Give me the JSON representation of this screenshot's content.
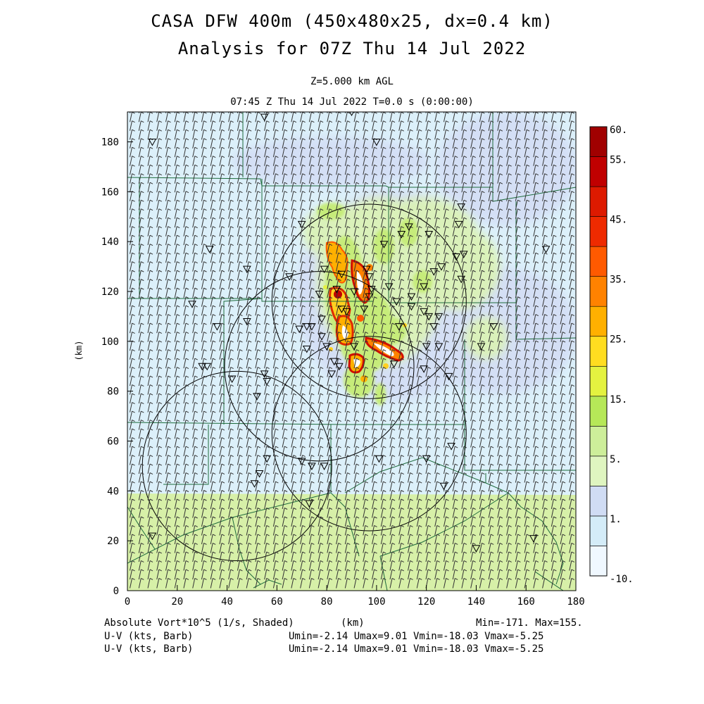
{
  "title": {
    "line1": "CASA DFW 400m (450x480x25, dx=0.4 km)",
    "line2": "Analysis for 07Z Thu 14 Jul 2022"
  },
  "subtitle": {
    "level": "Z=5.000 km AGL",
    "time": "07:45 Z Thu 14 Jul 2022    T=0.0 s (0:00:00)"
  },
  "axes": {
    "xlabel": "(km)",
    "ylabel": "(km)",
    "xticks": [
      0,
      20,
      40,
      60,
      80,
      100,
      120,
      140,
      160,
      180
    ],
    "yticks": [
      0,
      20,
      40,
      60,
      80,
      100,
      120,
      140,
      160,
      180
    ],
    "xlim": [
      0,
      180
    ],
    "ylim": [
      0,
      192
    ]
  },
  "colorbar": {
    "labels": [
      "60.",
      "55.",
      "45.",
      "35.",
      "25.",
      "15.",
      "5.",
      "1.",
      "-10."
    ],
    "colors": [
      "#f0f8ff",
      "#d4ecf8",
      "#d0dcf4",
      "#dff5c0",
      "#cdee9a",
      "#b6e858",
      "#e4f240",
      "#ffdd20",
      "#ffb000",
      "#ff8200",
      "#ff5a00",
      "#ee2a00",
      "#dd1a00",
      "#c00000",
      "#a00000"
    ]
  },
  "footer": {
    "field1": "Absolute Vort*10^5 (1/s, Shaded)",
    "xunits": "(km)",
    "minmax": "Min=-171. Max=155.",
    "field2": "U-V (kts, Barb)",
    "uv2": "Umin=-2.14 Umax=9.01 Vmin=-18.03 Vmax=-5.25",
    "field3": "U-V (kts, Barb)",
    "uv3": "Umin=-2.14 Umax=9.01 Vmin=-18.03 Vmax=-5.25"
  },
  "chart_data": {
    "type": "heatmap",
    "field": "Absolute Vorticity x10^5 (1/s)",
    "min": -171,
    "max": 155,
    "range_rings_km": [
      {
        "center": [
          97,
          116
        ],
        "radius": 39
      },
      {
        "center": [
          77,
          90
        ],
        "radius": 38
      },
      {
        "center": [
          97,
          63
        ],
        "radius": 39
      },
      {
        "center": [
          44,
          50
        ],
        "radius": 38
      }
    ],
    "stations_km": [
      [
        10,
        180
      ],
      [
        90,
        192
      ],
      [
        55,
        190
      ],
      [
        100,
        180
      ],
      [
        33,
        137
      ],
      [
        48,
        129
      ],
      [
        70,
        147
      ],
      [
        65,
        126
      ],
      [
        79,
        129
      ],
      [
        86,
        127
      ],
      [
        77,
        119
      ],
      [
        84,
        121
      ],
      [
        86,
        113
      ],
      [
        78,
        109
      ],
      [
        72,
        106
      ],
      [
        74,
        106
      ],
      [
        69,
        105
      ],
      [
        72,
        97
      ],
      [
        78,
        102
      ],
      [
        80,
        98
      ],
      [
        83,
        92
      ],
      [
        85,
        90
      ],
      [
        82,
        87
      ],
      [
        91,
        98
      ],
      [
        88,
        112
      ],
      [
        97,
        118
      ],
      [
        105,
        122
      ],
      [
        114,
        118
      ],
      [
        119,
        122
      ],
      [
        123,
        128
      ],
      [
        126,
        130
      ],
      [
        132,
        134
      ],
      [
        134,
        154
      ],
      [
        133,
        147
      ],
      [
        121,
        143
      ],
      [
        113,
        146
      ],
      [
        110,
        143
      ],
      [
        103,
        139
      ],
      [
        96,
        129
      ],
      [
        97,
        126
      ],
      [
        98,
        121
      ],
      [
        91,
        120
      ],
      [
        95,
        113
      ],
      [
        109,
        106
      ],
      [
        121,
        110
      ],
      [
        125,
        110
      ],
      [
        123,
        106
      ],
      [
        119,
        112
      ],
      [
        114,
        114
      ],
      [
        120,
        98
      ],
      [
        125,
        98
      ],
      [
        119,
        89
      ],
      [
        129,
        86
      ],
      [
        107,
        91
      ],
      [
        108,
        116
      ],
      [
        142,
        98
      ],
      [
        147,
        106
      ],
      [
        168,
        137
      ],
      [
        26,
        115
      ],
      [
        36,
        106
      ],
      [
        48,
        108
      ],
      [
        30,
        90
      ],
      [
        32,
        90
      ],
      [
        42,
        85
      ],
      [
        52,
        78
      ],
      [
        55,
        87
      ],
      [
        56,
        84
      ],
      [
        51,
        43
      ],
      [
        53,
        47
      ],
      [
        56,
        53
      ],
      [
        70,
        52
      ],
      [
        74,
        50
      ],
      [
        79,
        50
      ],
      [
        73,
        35
      ],
      [
        101,
        53
      ],
      [
        120,
        53
      ],
      [
        130,
        58
      ],
      [
        127,
        42
      ],
      [
        10,
        22
      ],
      [
        140,
        17
      ],
      [
        163,
        21
      ],
      [
        135,
        135
      ],
      [
        134,
        125
      ]
    ],
    "barb_spacing_km": 3.6
  }
}
